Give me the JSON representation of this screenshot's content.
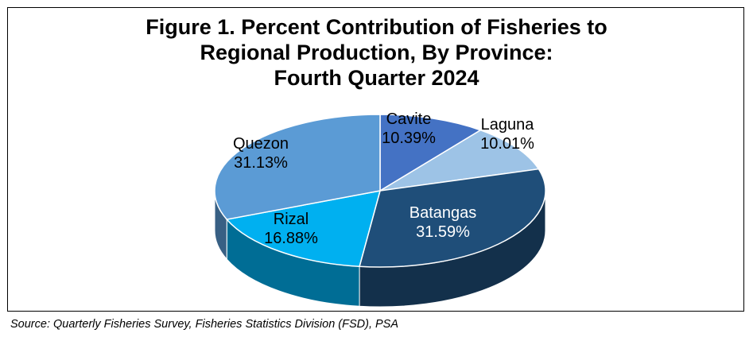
{
  "chart_data": {
    "type": "pie",
    "title": [
      "Figure 1. Percent Contribution of Fisheries to",
      "Regional Production, By Province:",
      "Fourth Quarter 2024"
    ],
    "slices": [
      {
        "label": "Cavite",
        "value": 10.39,
        "value_label": "10.39%",
        "color": "#4472C4"
      },
      {
        "label": "Laguna",
        "value": 10.01,
        "value_label": "10.01%",
        "color": "#9DC3E6"
      },
      {
        "label": "Batangas",
        "value": 31.59,
        "value_label": "31.59%",
        "color": "#1F4E79"
      },
      {
        "label": "Rizal",
        "value": 16.88,
        "value_label": "16.88%",
        "color": "#00B0F0"
      },
      {
        "label": "Quezon",
        "value": 31.13,
        "value_label": "31.13%",
        "color": "#5B9BD5"
      }
    ],
    "style": "3d-pie",
    "legend": "none"
  },
  "footer": {
    "source": "Source: Quarterly Fisheries Survey, Fisheries Statistics Division (FSD), PSA"
  }
}
